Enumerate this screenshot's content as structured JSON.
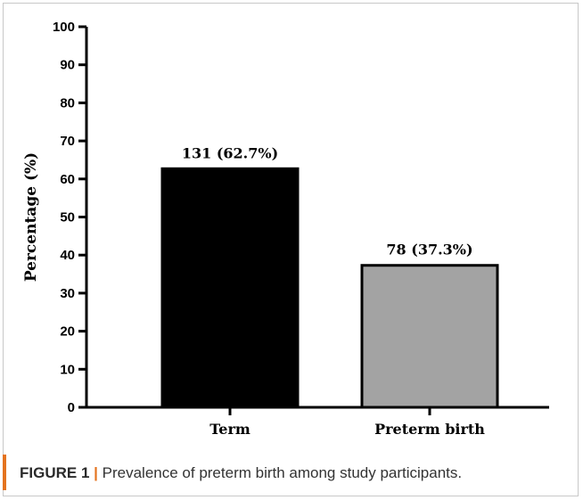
{
  "chart_data": {
    "type": "bar",
    "categories": [
      "Term",
      "Preterm birth"
    ],
    "values": [
      62.7,
      37.3
    ],
    "data_labels": [
      "131 (62.7%)",
      "78 (37.3%)"
    ],
    "bar_colors": [
      "#000000",
      "#a3a3a3"
    ],
    "xlabel": "",
    "ylabel": "Percentage (%)",
    "ylim": [
      0,
      100
    ],
    "yticks": [
      0,
      10,
      20,
      30,
      40,
      50,
      60,
      70,
      80,
      90,
      100
    ],
    "grid": false,
    "legend": "none"
  },
  "caption": {
    "label": "FIGURE 1",
    "separator": "|",
    "text": "Prevalence of preterm birth among study participants."
  },
  "colors": {
    "caption_accent": "#e4731f",
    "frame_border": "#c8c8c8"
  }
}
